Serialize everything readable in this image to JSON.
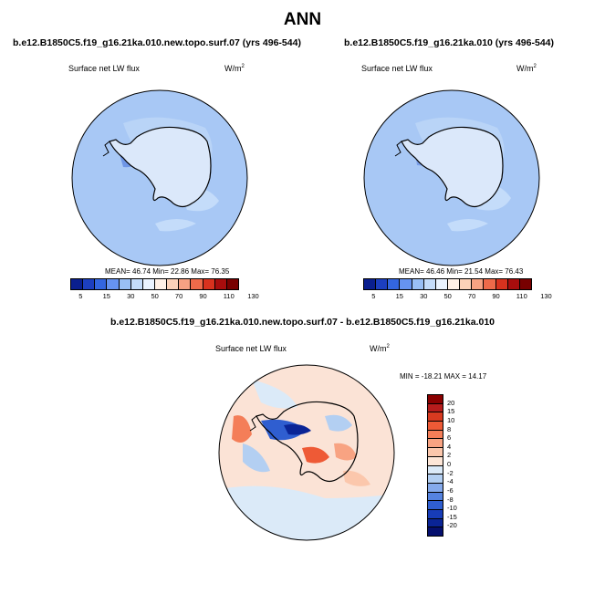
{
  "title": "ANN",
  "panel1": {
    "title": "b.e12.B1850C5.f19_g16.21ka.010.new.topo.surf.07 (yrs 496-544)",
    "var_label": "Surface net LW flux",
    "unit": "W/m",
    "unit_exp": "2",
    "stats": "MEAN= 46.74  Min= 22.86  Max= 76.35"
  },
  "panel2": {
    "title": "b.e12.B1850C5.f19_g16.21ka.010 (yrs 496-544)",
    "var_label": "Surface net LW flux",
    "unit": "W/m",
    "unit_exp": "2",
    "stats": "MEAN= 46.46  Min= 21.54  Max= 76.43"
  },
  "panel3": {
    "title": "b.e12.B1850C5.f19_g16.21ka.010.new.topo.surf.07 - b.e12.B1850C5.f19_g16.21ka.010",
    "var_label": "Surface net LW flux",
    "unit": "W/m",
    "unit_exp": "2",
    "stats": "MIN = -18.21 MAX =  14.17"
  },
  "colorbar_abs": {
    "labels": [
      "5",
      "15",
      "30",
      "50",
      "70",
      "90",
      "110",
      "130"
    ],
    "colors": [
      "#0a1f8f",
      "#1c3fc0",
      "#3366e0",
      "#6693f0",
      "#99bff5",
      "#c4dcfa",
      "#eaf3ff",
      "#fff0e6",
      "#fcd1b8",
      "#f6a283",
      "#ee6a4a",
      "#d8321e",
      "#a80d0d",
      "#780000"
    ]
  },
  "colorbar_diff": {
    "labels": [
      "20",
      "15",
      "10",
      "8",
      "6",
      "4",
      "2",
      "0",
      "-2",
      "-4",
      "-6",
      "-8",
      "-10",
      "-15",
      "-20"
    ],
    "colors": [
      "#8a0000",
      "#b71c1c",
      "#d83a20",
      "#ee5a36",
      "#f47e58",
      "#f8a382",
      "#fbc7ac",
      "#fde6d7",
      "#dbeaf8",
      "#b3cff2",
      "#85aaec",
      "#5583e0",
      "#2f5ed0",
      "#173cb8",
      "#0a2496",
      "#050f6e"
    ]
  },
  "colors": {
    "ocean_abs": "#a8c8f5",
    "ocean_diff": "#fbe3d6"
  }
}
